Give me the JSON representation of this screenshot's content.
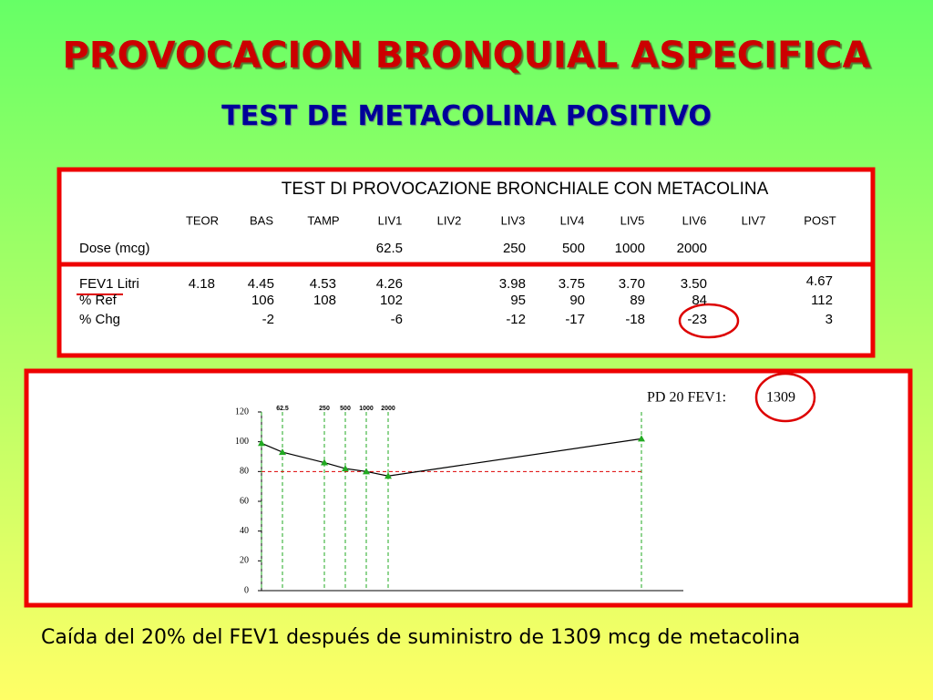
{
  "title": "PROVOCACION BRONQUIAL ASPECIFICA",
  "subtitle": "TEST DE METACOLINA POSITIVO",
  "table": {
    "title": "TEST DI PROVOCAZIONE BRONCHIALE CON METACOLINA",
    "headers": [
      "TEOR",
      "BAS",
      "TAMP",
      "LIV1",
      "LIV2",
      "LIV3",
      "LIV4",
      "LIV5",
      "LIV6",
      "LIV7",
      "POST"
    ],
    "rows": [
      {
        "label": "Dose (mcg)",
        "cells": [
          null,
          null,
          null,
          "62.5",
          null,
          "250",
          "500",
          "1000",
          "2000",
          null,
          null
        ]
      },
      {
        "label": "FEV1  Litri",
        "cells": [
          "4.18",
          "4.45",
          "4.53",
          "4.26",
          null,
          "3.98",
          "3.75",
          "3.70",
          "3.50",
          null,
          "4.67"
        ]
      },
      {
        "label": "% Ref",
        "cells": [
          null,
          "106",
          "108",
          "102",
          null,
          "95",
          "90",
          "89",
          "84",
          null,
          "112"
        ]
      },
      {
        "label": "% Chg",
        "cells": [
          null,
          "-2",
          null,
          "-6",
          null,
          "-12",
          "-17",
          "-18",
          "-23",
          null,
          "3"
        ]
      }
    ]
  },
  "chart_data": {
    "type": "line",
    "categories": [
      null,
      "62.5",
      "250",
      "500",
      "1000",
      "2000",
      null
    ],
    "values": [
      99,
      93,
      86,
      82,
      80,
      77,
      102
    ],
    "color": "#000000",
    "marker_color": "#22aa22",
    "threshold": 80,
    "threshold_color": "#dd0000",
    "ylim": [
      0,
      120
    ],
    "yticks": [
      0,
      20,
      40,
      60,
      80,
      100,
      120
    ],
    "pd_label": "PD 20 FEV1:",
    "pd_value": "1309"
  },
  "caption": "Caída del 20% del FEV1 después de suministro de 1309 mcg de metacolina"
}
